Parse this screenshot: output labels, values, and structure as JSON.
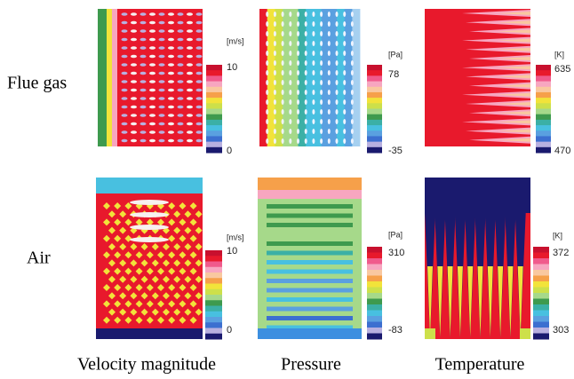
{
  "row_labels": [
    "Flue gas",
    "Air"
  ],
  "column_labels": [
    "Velocity magnitude",
    "Pressure",
    "Temperature"
  ],
  "panels": [
    [
      {
        "unit": "[m/s]",
        "max": 10,
        "min": 0
      },
      {
        "unit": "[Pa]",
        "max": 78,
        "min": -35
      },
      {
        "unit": "[K]",
        "max": 635,
        "min": 470
      }
    ],
    [
      {
        "unit": "[m/s]",
        "max": 10,
        "min": 0
      },
      {
        "unit": "[Pa]",
        "max": 310,
        "min": -83
      },
      {
        "unit": "[K]",
        "max": 372,
        "min": 303
      }
    ]
  ]
}
